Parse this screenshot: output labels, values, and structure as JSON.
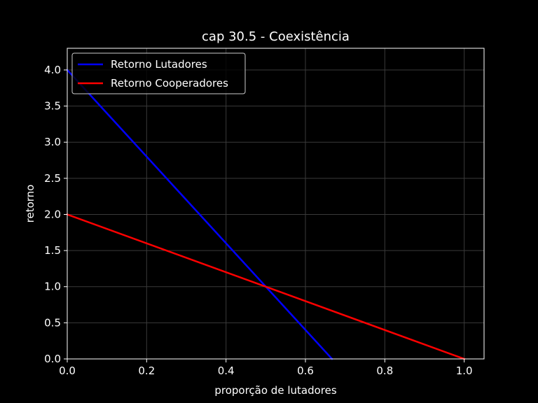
{
  "chart_data": {
    "type": "line",
    "title": "cap 30.5 - Coexistência",
    "xlabel": "proporção de lutadores",
    "ylabel": "retorno",
    "xlim": [
      0.0,
      1.05
    ],
    "ylim": [
      0.0,
      4.3
    ],
    "xticks": [
      0.0,
      0.2,
      0.4,
      0.6,
      0.8,
      1.0
    ],
    "xtick_labels": [
      "0.0",
      "0.2",
      "0.4",
      "0.6",
      "0.8",
      "1.0"
    ],
    "yticks": [
      0.0,
      0.5,
      1.0,
      1.5,
      2.0,
      2.5,
      3.0,
      3.5,
      4.0
    ],
    "ytick_labels": [
      "0.0",
      "0.5",
      "1.0",
      "1.5",
      "2.0",
      "2.5",
      "3.0",
      "3.5",
      "4.0"
    ],
    "grid": true,
    "legend_position": "top-left",
    "background": "#000000",
    "foreground": "#ffffff",
    "series": [
      {
        "name": "Retorno Lutadores",
        "color": "#0000ff",
        "x": [
          0.0,
          0.667
        ],
        "y": [
          4.0,
          0.0
        ]
      },
      {
        "name": "Retorno Cooperadores",
        "color": "#ff0000",
        "x": [
          0.0,
          1.0
        ],
        "y": [
          2.0,
          0.0
        ]
      }
    ]
  }
}
